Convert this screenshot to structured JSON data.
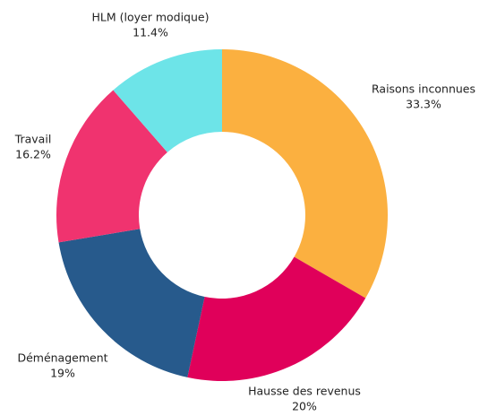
{
  "chart_data": {
    "type": "donut",
    "categories": [
      "Raisons inconnues",
      "Hausse des revenus",
      "Déménagement",
      "Travail",
      "HLM (loyer modique)"
    ],
    "values": [
      33.3,
      20,
      19,
      16.2,
      11.4
    ],
    "value_labels": [
      "33.3%",
      "20%",
      "19%",
      "16.2%",
      "11.4%"
    ],
    "colors": [
      "#fbb040",
      "#e0005a",
      "#275a8c",
      "#f0336f",
      "#6de4e8"
    ]
  }
}
